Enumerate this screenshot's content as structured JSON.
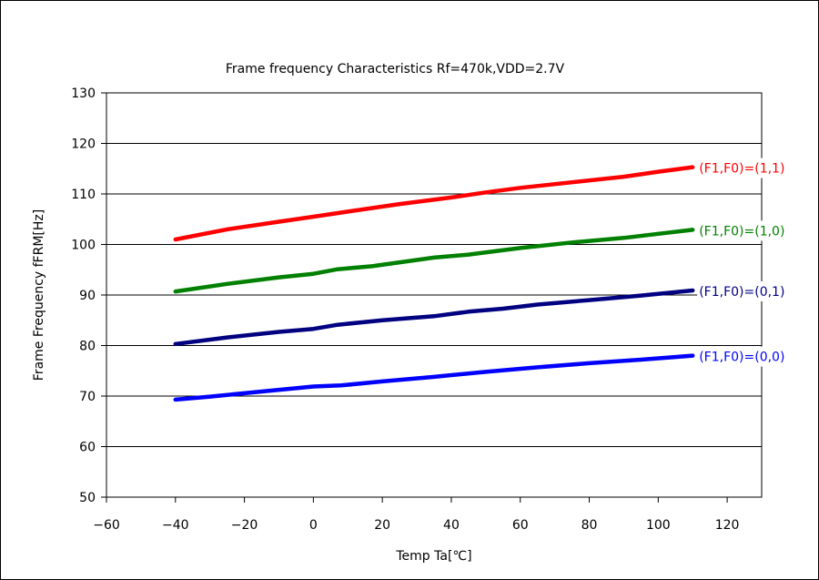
{
  "chart_data": {
    "type": "line",
    "title": "Frame frequency Characteristics  Rf=470k,VDD=2.7V",
    "xlabel": "Temp  Ta[℃]",
    "ylabel": "Frame Frequency  fFRM[Hz]",
    "xlim": [
      -60,
      130
    ],
    "ylim": [
      50,
      130
    ],
    "xticks": [
      -60,
      -40,
      -20,
      0,
      20,
      40,
      60,
      80,
      100,
      120
    ],
    "xtick_labels": [
      "−60",
      "−40",
      "−20",
      "0",
      "20",
      "40",
      "60",
      "80",
      "100",
      "120"
    ],
    "yticks": [
      50,
      60,
      70,
      80,
      90,
      100,
      110,
      120,
      130
    ],
    "ytick_labels": [
      "50",
      "60",
      "70",
      "80",
      "90",
      "100",
      "110",
      "120",
      "130"
    ],
    "grid": "horizontal",
    "legend": "inline labels at right end of each line",
    "series": [
      {
        "name": "(F1,F0)=(1,1)",
        "color": "#ff0000",
        "x": [
          -40,
          -25,
          -10,
          0,
          10,
          25,
          40,
          50,
          60,
          75,
          90,
          100,
          110
        ],
        "y": [
          101,
          103,
          104.5,
          105.5,
          106.5,
          108,
          109.3,
          110.3,
          111.2,
          112.3,
          113.4,
          114.4,
          115.3
        ]
      },
      {
        "name": "(F1,F0)=(1,0)",
        "color": "#008000",
        "x": [
          -40,
          -25,
          -10,
          0,
          7,
          17,
          35,
          45,
          60,
          75,
          90,
          100,
          110
        ],
        "y": [
          90.7,
          92.2,
          93.5,
          94.2,
          95.1,
          95.7,
          97.4,
          98,
          99.3,
          100.4,
          101.3,
          102.1,
          102.9
        ]
      },
      {
        "name": "(F1,F0)=(0,1)",
        "color": "#000080",
        "x": [
          -40,
          -25,
          -10,
          0,
          7,
          20,
          35,
          45,
          55,
          65,
          80,
          95,
          110
        ],
        "y": [
          80.3,
          81.6,
          82.7,
          83.3,
          84.1,
          85,
          85.8,
          86.7,
          87.3,
          88.1,
          89,
          89.9,
          90.9
        ]
      },
      {
        "name": "(F1,F0)=(0,0)",
        "color": "#0000ff",
        "x": [
          -40,
          -30,
          -15,
          0,
          8,
          20,
          35,
          50,
          65,
          80,
          95,
          110
        ],
        "y": [
          69.3,
          69.9,
          70.9,
          71.9,
          72.1,
          72.9,
          73.8,
          74.8,
          75.7,
          76.5,
          77.2,
          78
        ]
      }
    ]
  }
}
